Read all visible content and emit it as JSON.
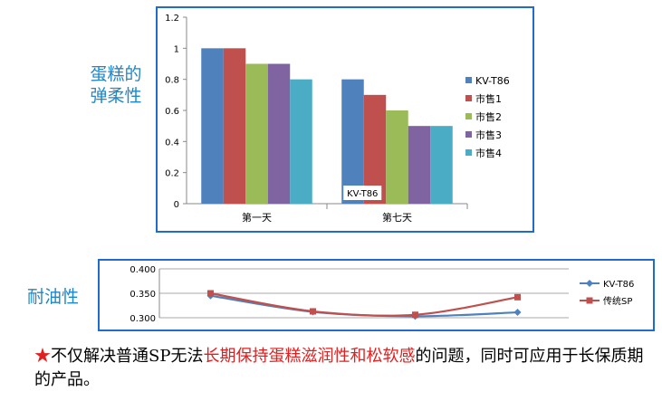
{
  "side_labels": {
    "elasticity": "蛋糕的弹柔性",
    "oil_resistance": "耐油性"
  },
  "chart_data": [
    {
      "type": "bar",
      "categories": [
        "第一天",
        "第七天"
      ],
      "series": [
        {
          "name": "KV-T86",
          "values": [
            1.0,
            0.8
          ],
          "color": "#4f81bd"
        },
        {
          "name": "市售1",
          "values": [
            1.0,
            0.7
          ],
          "color": "#c0504d"
        },
        {
          "name": "市售2",
          "values": [
            0.9,
            0.6
          ],
          "color": "#9bbb59"
        },
        {
          "name": "市售3",
          "values": [
            0.9,
            0.5
          ],
          "color": "#8064a2"
        },
        {
          "name": "市售4",
          "values": [
            0.8,
            0.5
          ],
          "color": "#4bacc6"
        }
      ],
      "ylim": [
        0,
        1.2
      ],
      "yticks": [
        "0",
        "0.2",
        "0.4",
        "0.6",
        "0.8",
        "1",
        "1.2"
      ],
      "annotation": "KV-T86",
      "grid": false,
      "legend": "right"
    },
    {
      "type": "line",
      "x": [
        1,
        2,
        3,
        4
      ],
      "series": [
        {
          "name": "KV-T86",
          "values": [
            0.345,
            0.312,
            0.303,
            0.311
          ],
          "color": "#4f81bd",
          "marker": "diamond"
        },
        {
          "name": "传统SP",
          "values": [
            0.35,
            0.313,
            0.306,
            0.342
          ],
          "color": "#c0504d",
          "marker": "square"
        }
      ],
      "ylim": [
        0.3,
        0.4
      ],
      "yticks": [
        "0.300",
        "0.350",
        "0.400"
      ],
      "grid": true,
      "legend": "right"
    }
  ],
  "footnote": {
    "star": "★",
    "part1": "不仅解决普通SP无法",
    "highlight": "长期保持蛋糕滋润性和松软感",
    "part2": "的问题，同时可应用于长保质期的产品。"
  }
}
